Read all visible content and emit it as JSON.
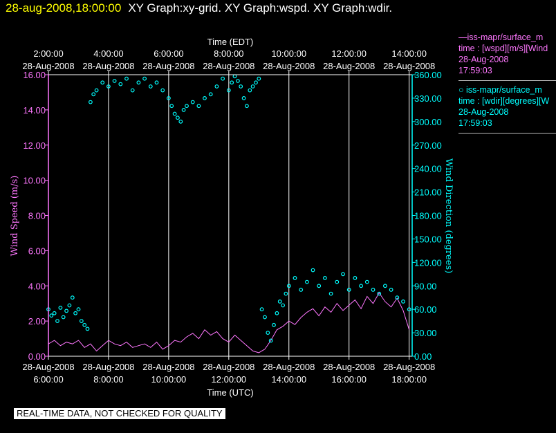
{
  "header": {
    "timestamp": "28-aug-2008,18:00:00",
    "graphs": "XY Graph:xy-grid.  XY Graph:wspd.  XY Graph:wdir."
  },
  "legend": [
    {
      "line1": "—iss-mapr/surface_m",
      "line2": "time : [wspd][m/s][Wind",
      "line3": "28-Aug-2008",
      "line4": "17:59:03",
      "color": "#ff77ff"
    },
    {
      "line1": "○  iss-mapr/surface_m",
      "line2": "time : [wdir][degrees][W",
      "line3": "28-Aug-2008",
      "line4": "17:59:03",
      "color": "#00ffff"
    }
  ],
  "note": "REAL-TIME DATA, NOT CHECKED FOR QUALITY",
  "colors": {
    "speed": "#ff77ff",
    "direction": "#00ffff",
    "axis": "#ffffff",
    "grid": "#ffffff"
  },
  "chart_data": {
    "type": "line",
    "top_axis": {
      "label": "Time (EDT)",
      "ticks": [
        {
          "time": "2:00:00",
          "date": "28-Aug-2008"
        },
        {
          "time": "4:00:00",
          "date": "28-Aug-2008"
        },
        {
          "time": "6:00:00",
          "date": "28-Aug-2008"
        },
        {
          "time": "8:00:00",
          "date": "28-Aug-2008"
        },
        {
          "time": "10:00:00",
          "date": "28-Aug-2008"
        },
        {
          "time": "12:00:00",
          "date": "28-Aug-2008"
        },
        {
          "time": "14:00:00",
          "date": "28-Aug-2008"
        }
      ]
    },
    "bottom_axis": {
      "label": "Time (UTC)",
      "range_hours": [
        6,
        18.1
      ],
      "ticks": [
        {
          "hour": 6,
          "date": "28-Aug-2008",
          "time": "6:00:00"
        },
        {
          "hour": 8,
          "date": "28-Aug-2008",
          "time": "8:00:00"
        },
        {
          "hour": 10,
          "date": "28-Aug-2008",
          "time": "10:00:00"
        },
        {
          "hour": 12,
          "date": "28-Aug-2008",
          "time": "12:00:00"
        },
        {
          "hour": 14,
          "date": "28-Aug-2008",
          "time": "14:00:00"
        },
        {
          "hour": 16,
          "date": "28-Aug-2008",
          "time": "16:00:00"
        },
        {
          "hour": 18,
          "date": "28-Aug-2008",
          "time": "18:00:00"
        }
      ]
    },
    "left_axis": {
      "label": "Wind Speed (m/s)",
      "range": [
        0,
        16
      ],
      "ticks": [
        "0.00",
        "2.00",
        "4.00",
        "6.00",
        "8.00",
        "10.00",
        "12.00",
        "14.00",
        "16.00"
      ]
    },
    "right_axis": {
      "label": "Wind Direction (degrees)",
      "range": [
        0,
        360
      ],
      "ticks": [
        "0.00",
        "30.00",
        "60.00",
        "90.00",
        "120.00",
        "150.00",
        "180.00",
        "210.00",
        "240.00",
        "270.00",
        "300.00",
        "330.00",
        "360.00"
      ]
    },
    "series": [
      {
        "kind": "line",
        "axis": "left",
        "hour": [
          6.0,
          6.2,
          6.4,
          6.6,
          6.8,
          7.0,
          7.2,
          7.4,
          7.6,
          7.8,
          8.0,
          8.2,
          8.4,
          8.6,
          8.8,
          9.0,
          9.2,
          9.4,
          9.6,
          9.8,
          10.0,
          10.2,
          10.4,
          10.6,
          10.8,
          11.0,
          11.2,
          11.4,
          11.6,
          11.8,
          12.0,
          12.2,
          12.4,
          12.6,
          12.8,
          13.0,
          13.2,
          13.4,
          13.6,
          13.8,
          14.0,
          14.2,
          14.4,
          14.6,
          14.8,
          15.0,
          15.2,
          15.4,
          15.6,
          15.8,
          16.0,
          16.2,
          16.4,
          16.6,
          16.8,
          17.0,
          17.2,
          17.4,
          17.6,
          17.8,
          18.0
        ],
        "values": [
          0.7,
          0.9,
          0.6,
          0.8,
          0.7,
          0.9,
          0.5,
          0.7,
          0.3,
          0.6,
          0.9,
          0.7,
          0.6,
          0.8,
          0.5,
          0.6,
          0.7,
          0.5,
          0.8,
          0.4,
          0.6,
          0.9,
          0.8,
          1.1,
          1.3,
          1.0,
          1.5,
          1.2,
          1.4,
          1.0,
          0.8,
          1.2,
          0.9,
          0.6,
          0.3,
          0.2,
          0.4,
          0.9,
          1.5,
          1.7,
          2.0,
          1.8,
          2.2,
          2.5,
          2.7,
          2.3,
          2.8,
          2.5,
          3.0,
          2.6,
          2.9,
          3.2,
          2.7,
          3.4,
          3.0,
          3.6,
          3.1,
          2.8,
          3.3,
          2.6,
          1.5
        ]
      },
      {
        "kind": "scatter",
        "axis": "right",
        "hour": [
          6.0,
          6.1,
          6.2,
          6.3,
          6.4,
          6.5,
          6.6,
          6.7,
          6.8,
          6.9,
          7.0,
          7.1,
          7.2,
          7.3,
          7.4,
          7.5,
          7.6,
          7.8,
          8.0,
          8.2,
          8.4,
          8.6,
          8.8,
          9.0,
          9.2,
          9.4,
          9.6,
          9.8,
          10.0,
          10.1,
          10.2,
          10.3,
          10.4,
          10.5,
          10.6,
          10.8,
          11.0,
          11.2,
          11.4,
          11.6,
          11.8,
          12.0,
          12.1,
          12.2,
          12.3,
          12.4,
          12.5,
          12.6,
          12.7,
          12.8,
          12.9,
          13.0,
          13.1,
          13.2,
          13.3,
          13.4,
          13.5,
          13.6,
          13.7,
          13.8,
          13.9,
          14.0,
          14.2,
          14.4,
          14.6,
          14.8,
          15.0,
          15.2,
          15.4,
          15.6,
          15.8,
          16.0,
          16.2,
          16.4,
          16.6,
          16.8,
          17.0,
          17.2,
          17.4,
          17.6,
          17.8,
          18.0
        ],
        "values": [
          60,
          52,
          55,
          45,
          62,
          50,
          58,
          65,
          75,
          55,
          60,
          45,
          40,
          35,
          325,
          335,
          340,
          350,
          345,
          352,
          348,
          355,
          340,
          350,
          355,
          345,
          350,
          340,
          330,
          320,
          310,
          305,
          300,
          315,
          320,
          325,
          320,
          330,
          335,
          345,
          355,
          340,
          350,
          358,
          352,
          345,
          330,
          320,
          340,
          345,
          350,
          355,
          60,
          50,
          30,
          20,
          40,
          55,
          70,
          65,
          80,
          90,
          100,
          85,
          95,
          110,
          90,
          100,
          80,
          95,
          105,
          85,
          100,
          90,
          95,
          85,
          80,
          90,
          85,
          75,
          70,
          60
        ]
      }
    ]
  }
}
